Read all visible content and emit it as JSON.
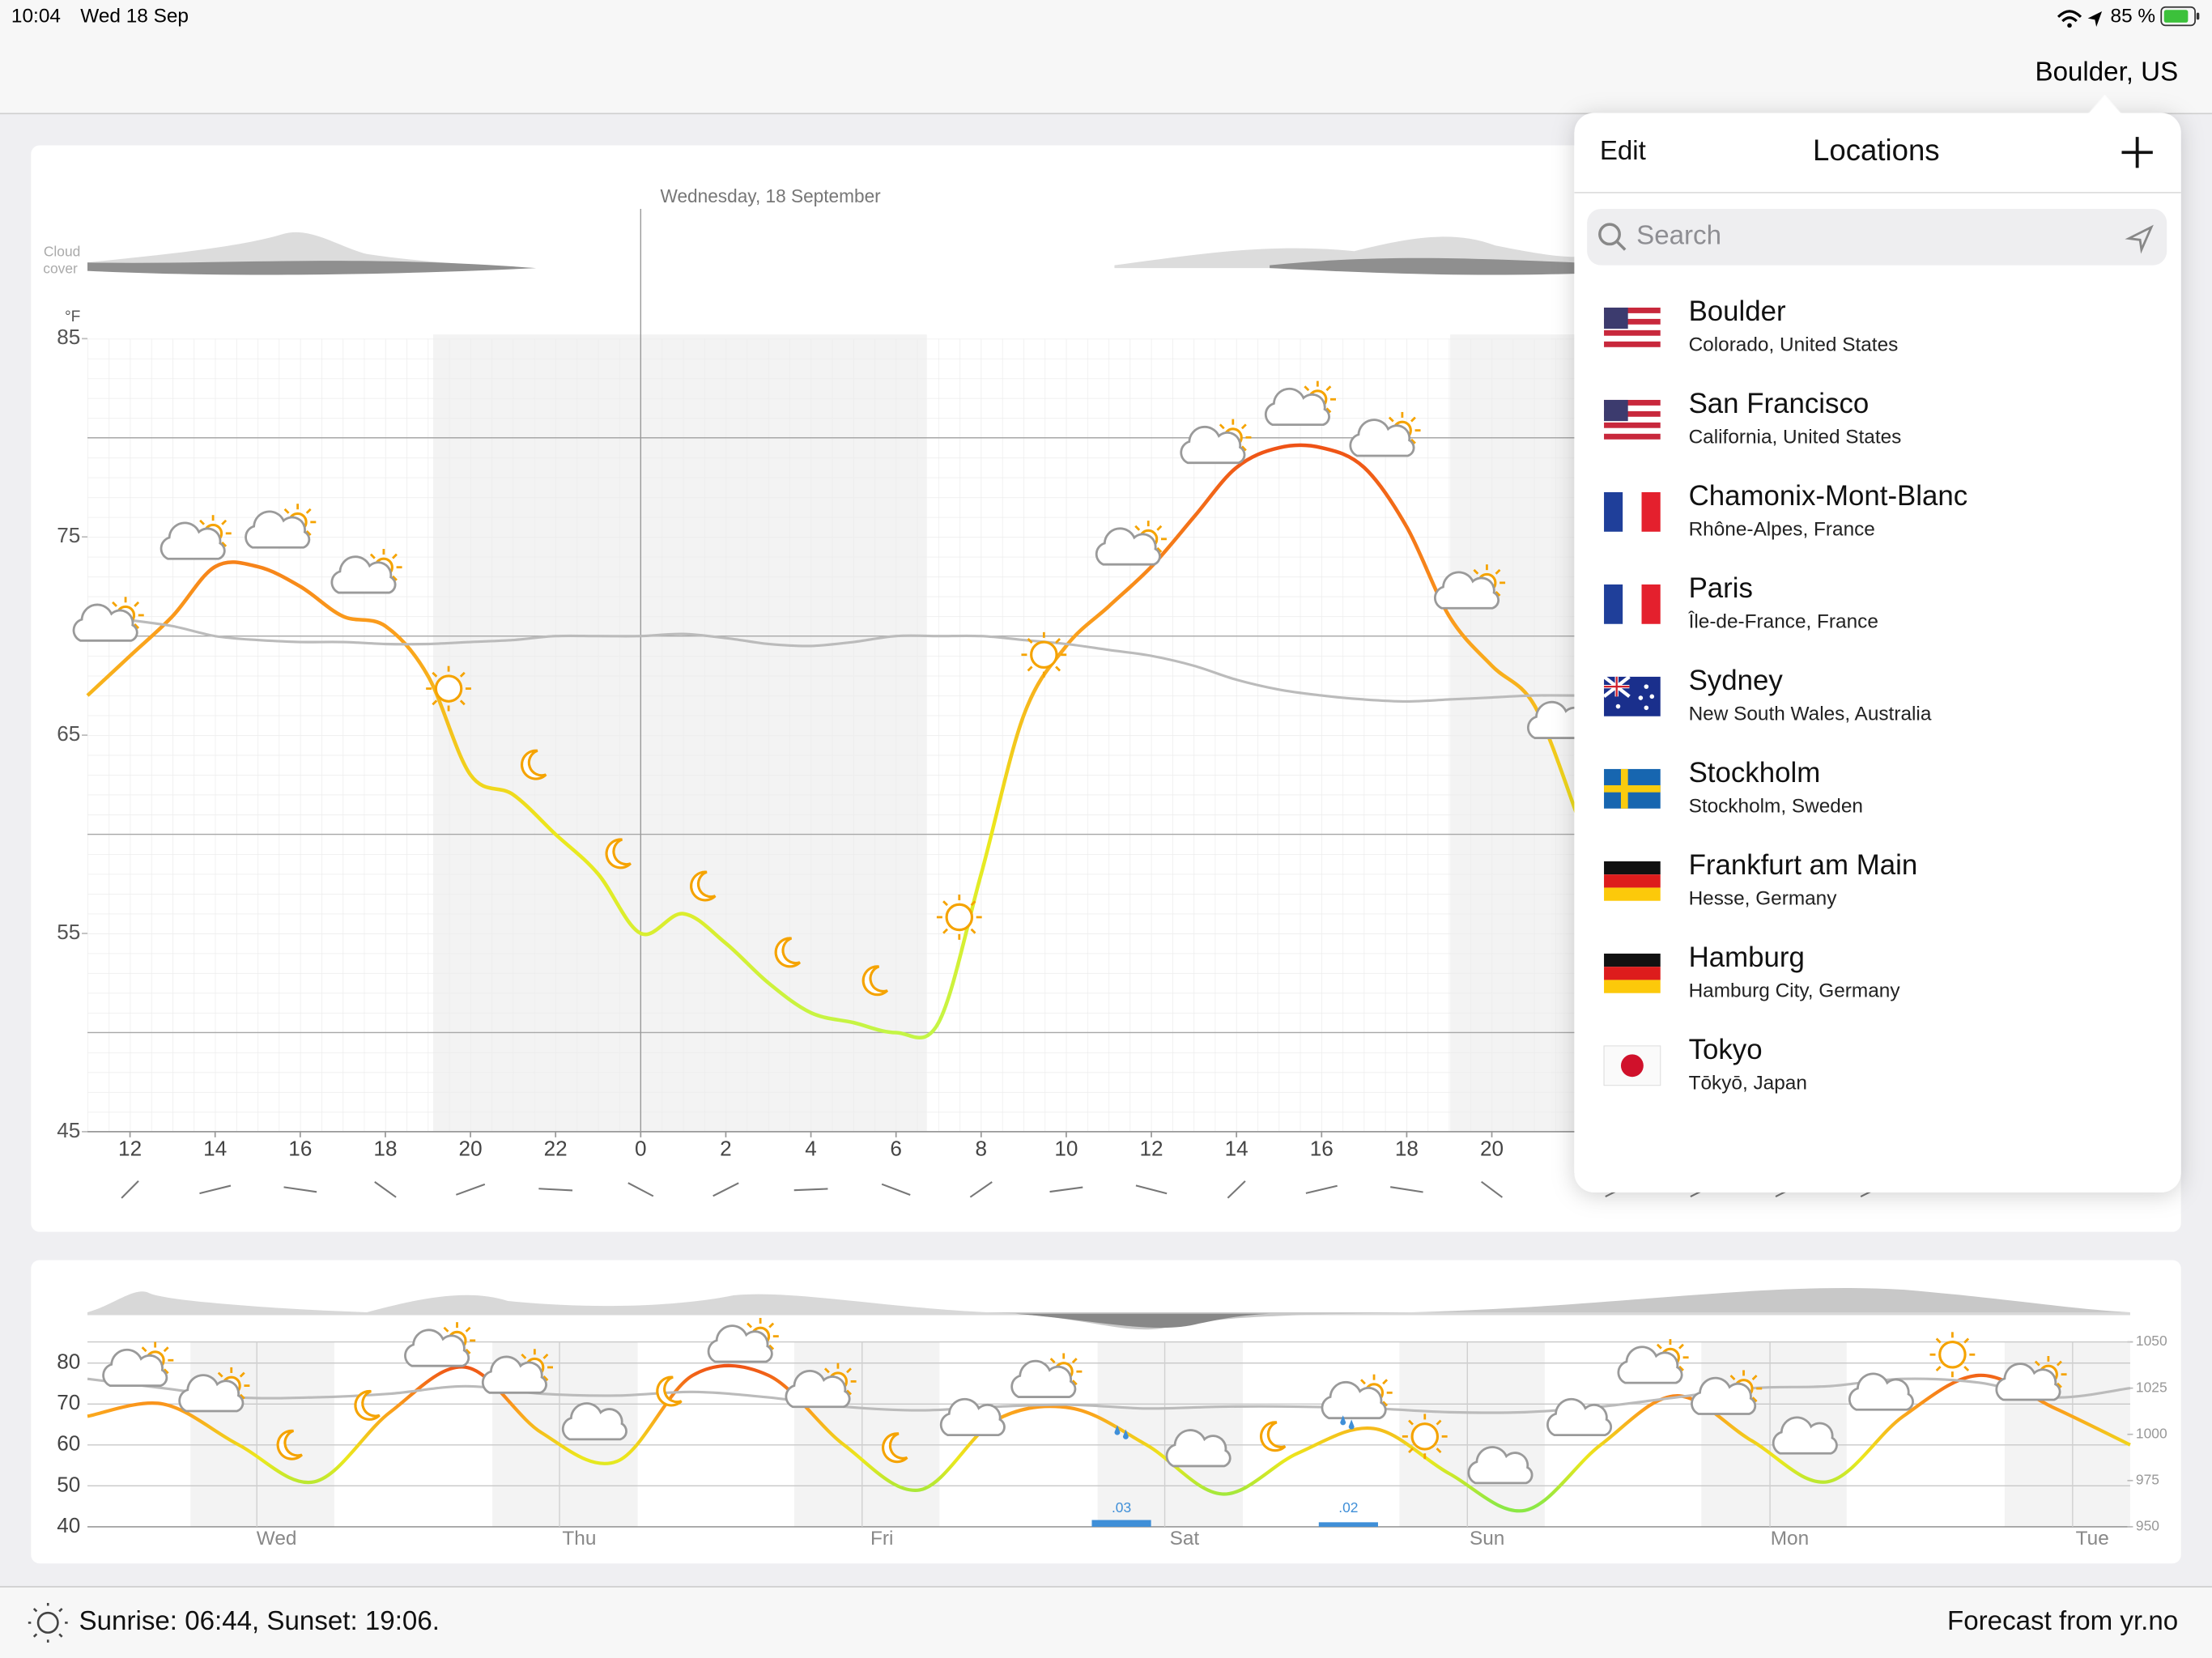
{
  "status_bar": {
    "time": "10:04",
    "date": "Wed 18 Sep",
    "battery": "85 %"
  },
  "header": {
    "location": "Boulder, US"
  },
  "hourly_chart": {
    "type": "line",
    "date_label": "Wednesday, 18 September",
    "cloud_label": [
      "Cloud",
      "cover"
    ],
    "unit": "°F",
    "xlim": [
      11,
      59
    ],
    "xticks": [
      12,
      14,
      16,
      18,
      20,
      22,
      {
        "value": 24,
        "label": "0"
      },
      {
        "value": 26,
        "label": "2"
      },
      {
        "value": 28,
        "label": "4"
      },
      {
        "value": 30,
        "label": "6"
      },
      {
        "value": 32,
        "label": "8"
      },
      {
        "value": 34,
        "label": "10"
      },
      {
        "value": 36,
        "label": "12"
      },
      {
        "value": 38,
        "label": "14"
      },
      {
        "value": 40,
        "label": "16"
      },
      {
        "value": 42,
        "label": "18"
      },
      {
        "value": 44,
        "label": "20"
      }
    ],
    "ylim": [
      45,
      85
    ],
    "yticks": [
      45,
      55,
      65,
      75,
      85
    ],
    "grid_lines": [
      50,
      60,
      70,
      80
    ],
    "x": [
      11,
      12,
      13,
      14,
      15,
      16,
      17,
      18,
      19,
      20,
      21,
      22,
      23,
      24,
      25,
      26,
      27,
      28,
      29,
      30,
      31,
      32,
      33,
      34,
      35,
      36,
      37,
      38,
      39,
      40,
      41,
      42,
      43,
      44,
      45,
      46
    ],
    "series": [
      {
        "color_stops": [
          "#ee4f16",
          "#fba11c",
          "#ece81c",
          "#c4f545"
        ],
        "values": [
          67,
          69,
          71,
          73.5,
          73.5,
          72.5,
          71,
          70.5,
          68,
          63,
          62,
          60,
          58,
          55,
          56,
          54.5,
          52.5,
          51,
          50.5,
          50,
          50.5,
          58,
          66,
          69.5,
          71.5,
          73.5,
          76,
          78.5,
          79.5,
          79.5,
          78.5,
          75.5,
          71,
          68.5,
          66.5,
          61
        ]
      },
      {
        "color": "#bbbbbb",
        "values": [
          71,
          70.8,
          70.5,
          70,
          69.8,
          69.7,
          69.7,
          69.6,
          69.6,
          69.7,
          69.8,
          70,
          70,
          70,
          70.1,
          69.9,
          69.6,
          69.5,
          69.7,
          70,
          70,
          70,
          69.8,
          69.6,
          69.3,
          69,
          68.5,
          67.8,
          67.3,
          67,
          66.8,
          66.7,
          66.8,
          66.9,
          67,
          67
        ]
      }
    ]
  },
  "daily_chart": {
    "type": "line",
    "xlim": [
      0,
      162
    ],
    "xticks": [
      {
        "value": 15,
        "label": "Wed"
      },
      {
        "value": 39,
        "label": "Thu"
      },
      {
        "value": 63,
        "label": "Fri"
      },
      {
        "value": 87,
        "label": "Sat"
      },
      {
        "value": 111,
        "label": "Sun"
      },
      {
        "value": 135,
        "label": "Mon"
      },
      {
        "value": 159,
        "label": "Tue"
      }
    ],
    "ylim": [
      40,
      85
    ],
    "yticks": [
      40,
      50,
      60,
      70,
      80
    ],
    "y2lim": [
      950,
      1050
    ],
    "y2ticks": [
      950,
      975,
      1000,
      1025,
      1050
    ],
    "x": [
      0,
      6,
      12,
      18,
      24,
      30,
      36,
      42,
      48,
      54,
      60,
      66,
      72,
      78,
      84,
      90,
      96,
      102,
      108,
      114,
      120,
      126,
      132,
      138,
      144,
      150,
      156,
      162
    ],
    "series": [
      {
        "color_stops": [
          "#ee4f16",
          "#fba11c",
          "#ece81c",
          "#8be845"
        ],
        "values": [
          67,
          70,
          60,
          51,
          68,
          79,
          63,
          56,
          77,
          77,
          60,
          49,
          66,
          69,
          60,
          48,
          58,
          64,
          53,
          44,
          60,
          72,
          61,
          51,
          67,
          77,
          69,
          60
        ]
      },
      {
        "color": "#bbbbbb",
        "axis": "y2",
        "values": [
          1030,
          1025,
          1020,
          1020,
          1022,
          1026,
          1022,
          1021,
          1023,
          1020,
          1015,
          1013,
          1015,
          1016,
          1014,
          1015,
          1015,
          1014,
          1012,
          1012,
          1015,
          1020,
          1025,
          1026,
          1030,
          1028,
          1020,
          1025
        ]
      }
    ],
    "precipitation": {
      "color": "#3f8fd8",
      "x": [
        82,
        100
      ],
      "values": [
        0.03,
        0.02
      ],
      "value_labels": [
        ".03",
        ".02"
      ]
    }
  },
  "locations_panel": {
    "edit": "Edit",
    "title": "Locations",
    "search_placeholder": "Search",
    "items": [
      {
        "name": "Boulder",
        "region": "Colorado, United States"
      },
      {
        "name": "San Francisco",
        "region": "California, United States"
      },
      {
        "name": "Chamonix-Mont-Blanc",
        "region": "Rhône-Alpes, France"
      },
      {
        "name": "Paris",
        "region": "Île-de-France, France"
      },
      {
        "name": "Sydney",
        "region": "New South Wales, Australia"
      },
      {
        "name": "Stockholm",
        "region": "Stockholm, Sweden"
      },
      {
        "name": "Frankfurt am Main",
        "region": "Hesse, Germany"
      },
      {
        "name": "Hamburg",
        "region": "Hamburg City, Germany"
      },
      {
        "name": "Tokyo",
        "region": "Tōkyō, Japan"
      }
    ]
  },
  "footer": {
    "sun_times": "Sunrise: 06:44, Sunset: 19:06.",
    "source": "Forecast from yr.no"
  }
}
